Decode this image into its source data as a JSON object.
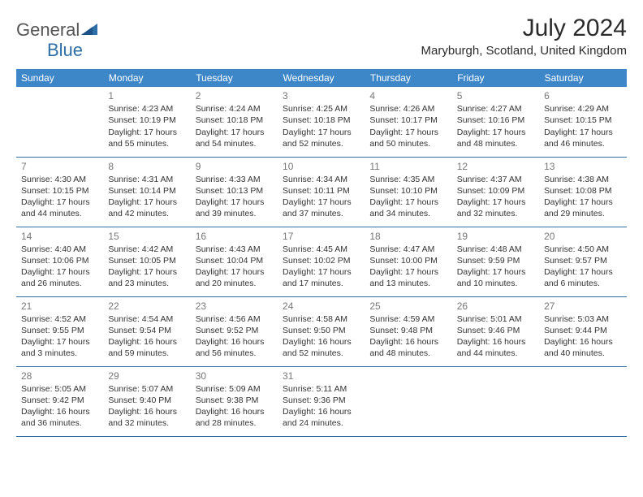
{
  "logo": {
    "text_left": "General",
    "text_right": "Blue"
  },
  "title": "July 2024",
  "location": "Maryburgh, Scotland, United Kingdom",
  "colors": {
    "header_bg": "#3d87c9",
    "header_text": "#ffffff",
    "border": "#2f6fa8",
    "daynum": "#777777",
    "body_text": "#333333",
    "logo_gray": "#555555",
    "logo_blue": "#2f6fa8"
  },
  "day_headers": [
    "Sunday",
    "Monday",
    "Tuesday",
    "Wednesday",
    "Thursday",
    "Friday",
    "Saturday"
  ],
  "weeks": [
    [
      null,
      {
        "n": "1",
        "sunrise": "Sunrise: 4:23 AM",
        "sunset": "Sunset: 10:19 PM",
        "dl1": "Daylight: 17 hours",
        "dl2": "and 55 minutes."
      },
      {
        "n": "2",
        "sunrise": "Sunrise: 4:24 AM",
        "sunset": "Sunset: 10:18 PM",
        "dl1": "Daylight: 17 hours",
        "dl2": "and 54 minutes."
      },
      {
        "n": "3",
        "sunrise": "Sunrise: 4:25 AM",
        "sunset": "Sunset: 10:18 PM",
        "dl1": "Daylight: 17 hours",
        "dl2": "and 52 minutes."
      },
      {
        "n": "4",
        "sunrise": "Sunrise: 4:26 AM",
        "sunset": "Sunset: 10:17 PM",
        "dl1": "Daylight: 17 hours",
        "dl2": "and 50 minutes."
      },
      {
        "n": "5",
        "sunrise": "Sunrise: 4:27 AM",
        "sunset": "Sunset: 10:16 PM",
        "dl1": "Daylight: 17 hours",
        "dl2": "and 48 minutes."
      },
      {
        "n": "6",
        "sunrise": "Sunrise: 4:29 AM",
        "sunset": "Sunset: 10:15 PM",
        "dl1": "Daylight: 17 hours",
        "dl2": "and 46 minutes."
      }
    ],
    [
      {
        "n": "7",
        "sunrise": "Sunrise: 4:30 AM",
        "sunset": "Sunset: 10:15 PM",
        "dl1": "Daylight: 17 hours",
        "dl2": "and 44 minutes."
      },
      {
        "n": "8",
        "sunrise": "Sunrise: 4:31 AM",
        "sunset": "Sunset: 10:14 PM",
        "dl1": "Daylight: 17 hours",
        "dl2": "and 42 minutes."
      },
      {
        "n": "9",
        "sunrise": "Sunrise: 4:33 AM",
        "sunset": "Sunset: 10:13 PM",
        "dl1": "Daylight: 17 hours",
        "dl2": "and 39 minutes."
      },
      {
        "n": "10",
        "sunrise": "Sunrise: 4:34 AM",
        "sunset": "Sunset: 10:11 PM",
        "dl1": "Daylight: 17 hours",
        "dl2": "and 37 minutes."
      },
      {
        "n": "11",
        "sunrise": "Sunrise: 4:35 AM",
        "sunset": "Sunset: 10:10 PM",
        "dl1": "Daylight: 17 hours",
        "dl2": "and 34 minutes."
      },
      {
        "n": "12",
        "sunrise": "Sunrise: 4:37 AM",
        "sunset": "Sunset: 10:09 PM",
        "dl1": "Daylight: 17 hours",
        "dl2": "and 32 minutes."
      },
      {
        "n": "13",
        "sunrise": "Sunrise: 4:38 AM",
        "sunset": "Sunset: 10:08 PM",
        "dl1": "Daylight: 17 hours",
        "dl2": "and 29 minutes."
      }
    ],
    [
      {
        "n": "14",
        "sunrise": "Sunrise: 4:40 AM",
        "sunset": "Sunset: 10:06 PM",
        "dl1": "Daylight: 17 hours",
        "dl2": "and 26 minutes."
      },
      {
        "n": "15",
        "sunrise": "Sunrise: 4:42 AM",
        "sunset": "Sunset: 10:05 PM",
        "dl1": "Daylight: 17 hours",
        "dl2": "and 23 minutes."
      },
      {
        "n": "16",
        "sunrise": "Sunrise: 4:43 AM",
        "sunset": "Sunset: 10:04 PM",
        "dl1": "Daylight: 17 hours",
        "dl2": "and 20 minutes."
      },
      {
        "n": "17",
        "sunrise": "Sunrise: 4:45 AM",
        "sunset": "Sunset: 10:02 PM",
        "dl1": "Daylight: 17 hours",
        "dl2": "and 17 minutes."
      },
      {
        "n": "18",
        "sunrise": "Sunrise: 4:47 AM",
        "sunset": "Sunset: 10:00 PM",
        "dl1": "Daylight: 17 hours",
        "dl2": "and 13 minutes."
      },
      {
        "n": "19",
        "sunrise": "Sunrise: 4:48 AM",
        "sunset": "Sunset: 9:59 PM",
        "dl1": "Daylight: 17 hours",
        "dl2": "and 10 minutes."
      },
      {
        "n": "20",
        "sunrise": "Sunrise: 4:50 AM",
        "sunset": "Sunset: 9:57 PM",
        "dl1": "Daylight: 17 hours",
        "dl2": "and 6 minutes."
      }
    ],
    [
      {
        "n": "21",
        "sunrise": "Sunrise: 4:52 AM",
        "sunset": "Sunset: 9:55 PM",
        "dl1": "Daylight: 17 hours",
        "dl2": "and 3 minutes."
      },
      {
        "n": "22",
        "sunrise": "Sunrise: 4:54 AM",
        "sunset": "Sunset: 9:54 PM",
        "dl1": "Daylight: 16 hours",
        "dl2": "and 59 minutes."
      },
      {
        "n": "23",
        "sunrise": "Sunrise: 4:56 AM",
        "sunset": "Sunset: 9:52 PM",
        "dl1": "Daylight: 16 hours",
        "dl2": "and 56 minutes."
      },
      {
        "n": "24",
        "sunrise": "Sunrise: 4:58 AM",
        "sunset": "Sunset: 9:50 PM",
        "dl1": "Daylight: 16 hours",
        "dl2": "and 52 minutes."
      },
      {
        "n": "25",
        "sunrise": "Sunrise: 4:59 AM",
        "sunset": "Sunset: 9:48 PM",
        "dl1": "Daylight: 16 hours",
        "dl2": "and 48 minutes."
      },
      {
        "n": "26",
        "sunrise": "Sunrise: 5:01 AM",
        "sunset": "Sunset: 9:46 PM",
        "dl1": "Daylight: 16 hours",
        "dl2": "and 44 minutes."
      },
      {
        "n": "27",
        "sunrise": "Sunrise: 5:03 AM",
        "sunset": "Sunset: 9:44 PM",
        "dl1": "Daylight: 16 hours",
        "dl2": "and 40 minutes."
      }
    ],
    [
      {
        "n": "28",
        "sunrise": "Sunrise: 5:05 AM",
        "sunset": "Sunset: 9:42 PM",
        "dl1": "Daylight: 16 hours",
        "dl2": "and 36 minutes."
      },
      {
        "n": "29",
        "sunrise": "Sunrise: 5:07 AM",
        "sunset": "Sunset: 9:40 PM",
        "dl1": "Daylight: 16 hours",
        "dl2": "and 32 minutes."
      },
      {
        "n": "30",
        "sunrise": "Sunrise: 5:09 AM",
        "sunset": "Sunset: 9:38 PM",
        "dl1": "Daylight: 16 hours",
        "dl2": "and 28 minutes."
      },
      {
        "n": "31",
        "sunrise": "Sunrise: 5:11 AM",
        "sunset": "Sunset: 9:36 PM",
        "dl1": "Daylight: 16 hours",
        "dl2": "and 24 minutes."
      },
      null,
      null,
      null
    ]
  ]
}
